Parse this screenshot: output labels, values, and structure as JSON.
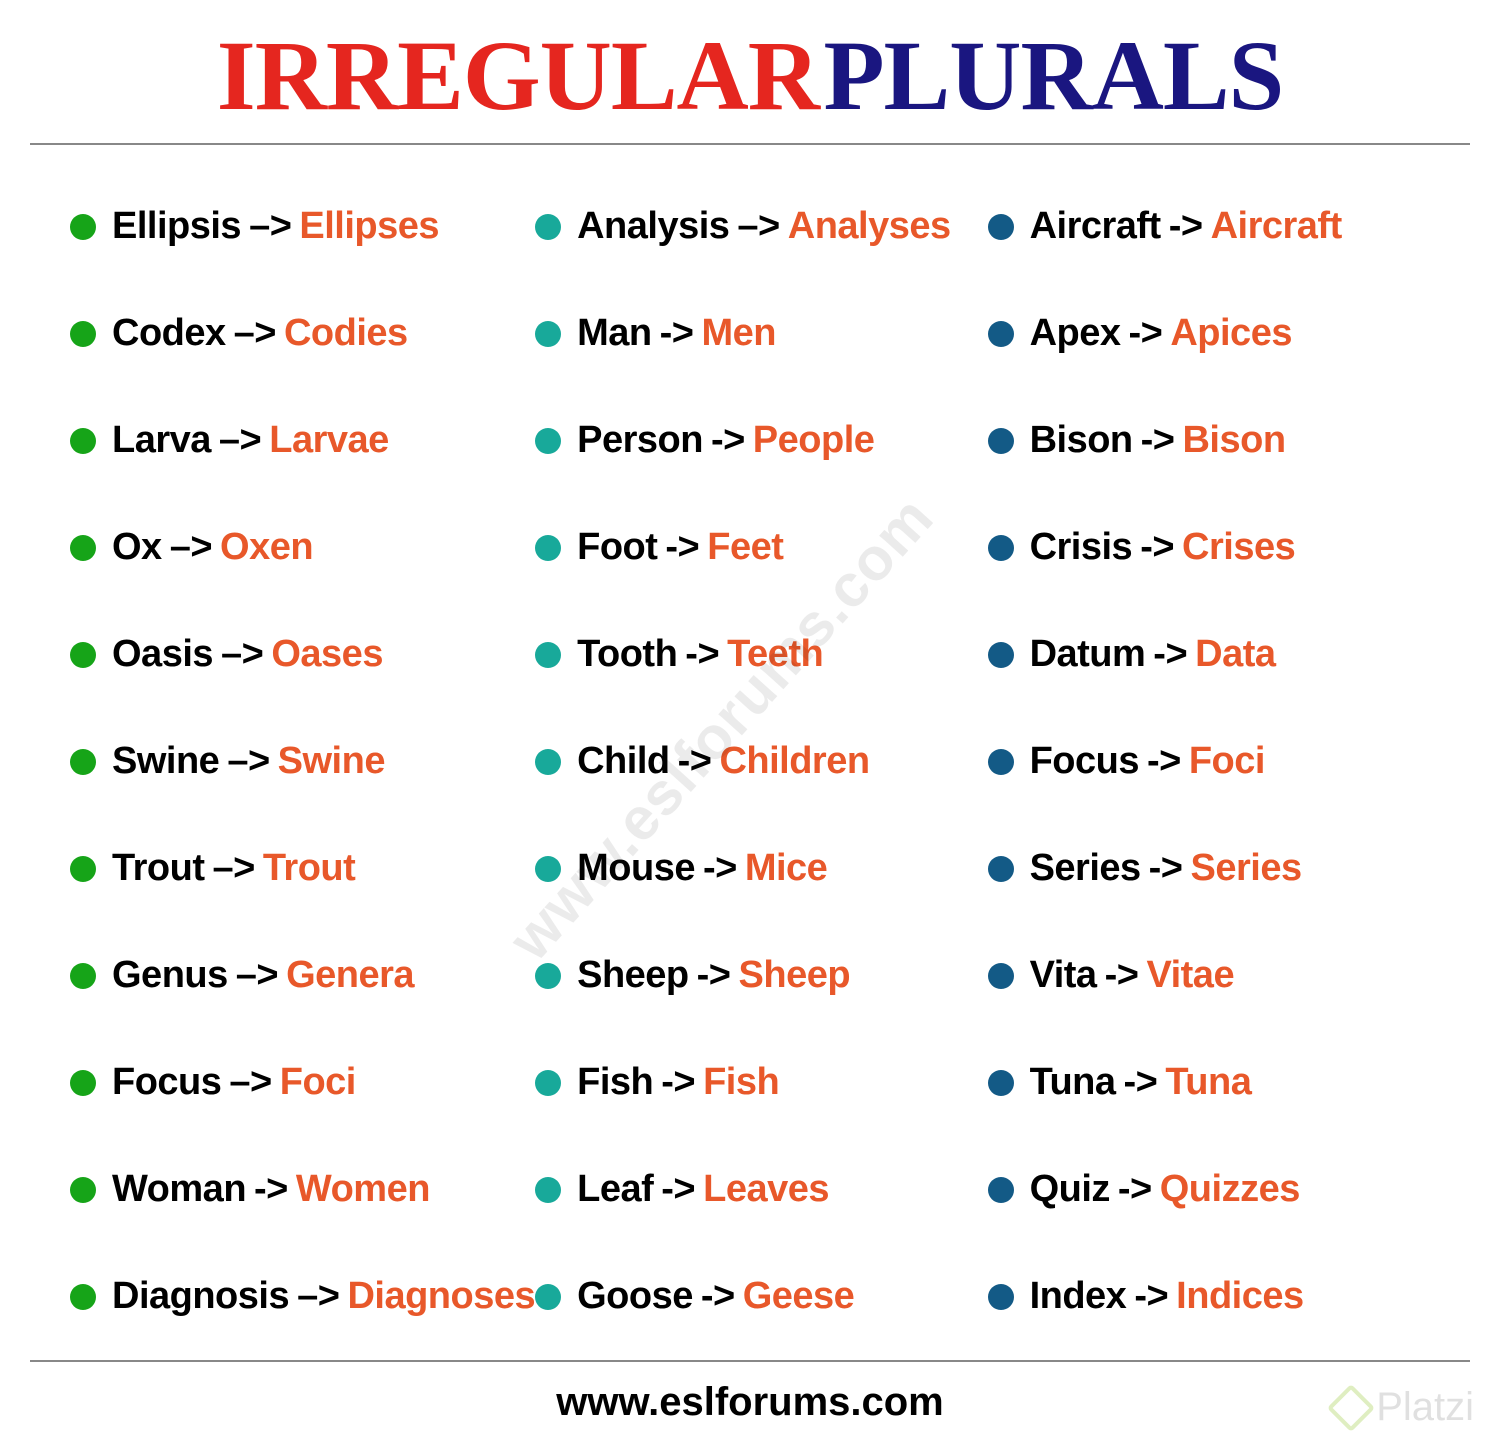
{
  "title": {
    "word1": "IRREGULAR",
    "word1_color": "#e5261f",
    "word2": "PLURALS",
    "word2_color": "#1a1680"
  },
  "plural_color": "#e8582a",
  "columns": [
    {
      "bullet_color": "#16a418",
      "arrow": "–>",
      "items": [
        {
          "s": "Ellipsis",
          "p": "Ellipses"
        },
        {
          "s": "Codex",
          "p": "Codies"
        },
        {
          "s": "Larva",
          "p": "Larvae",
          "arrow": "–>"
        },
        {
          "s": "Ox",
          "p": "Oxen"
        },
        {
          "s": "Oasis",
          "p": "Oases"
        },
        {
          "s": "Swine",
          "p": "Swine"
        },
        {
          "s": "Trout",
          "p": "Trout"
        },
        {
          "s": "Genus",
          "p": "Genera"
        },
        {
          "s": "Focus",
          "p": "Foci"
        },
        {
          "s": "Woman",
          "p": "Women",
          "arrow": "->"
        },
        {
          "s": "Diagnosis",
          "p": "Diagnoses"
        }
      ]
    },
    {
      "bullet_color": "#18a99a",
      "arrow": "->",
      "items": [
        {
          "s": "Analysis",
          "p": "Analyses",
          "arrow": "–>"
        },
        {
          "s": "Man",
          "p": "Men"
        },
        {
          "s": "Person",
          "p": "People"
        },
        {
          "s": "Foot",
          "p": "Feet"
        },
        {
          "s": "Tooth",
          "p": "Teeth"
        },
        {
          "s": "Child",
          "p": "Children"
        },
        {
          "s": "Mouse",
          "p": "Mice"
        },
        {
          "s": "Sheep",
          "p": "Sheep"
        },
        {
          "s": "Fish",
          "p": "Fish"
        },
        {
          "s": "Leaf",
          "p": "Leaves"
        },
        {
          "s": "Goose",
          "p": "Geese"
        }
      ]
    },
    {
      "bullet_color": "#135a86",
      "arrow": "->",
      "items": [
        {
          "s": "Aircraft",
          "p": "Aircraft"
        },
        {
          "s": "Apex",
          "p": "Apices"
        },
        {
          "s": "Bison",
          "p": "Bison"
        },
        {
          "s": "Crisis",
          "p": "Crises"
        },
        {
          "s": "Datum",
          "p": "Data"
        },
        {
          "s": "Focus",
          "p": "Foci"
        },
        {
          "s": "Series",
          "p": "Series"
        },
        {
          "s": "Vita",
          "p": "Vitae"
        },
        {
          "s": "Tuna",
          "p": "Tuna"
        },
        {
          "s": "Quiz",
          "p": "Quizzes"
        },
        {
          "s": "Index",
          "p": "Indices"
        }
      ]
    }
  ],
  "watermark": "www.eslforums.com",
  "footer": "www.eslforums.com",
  "platzi_label": "Platzi"
}
